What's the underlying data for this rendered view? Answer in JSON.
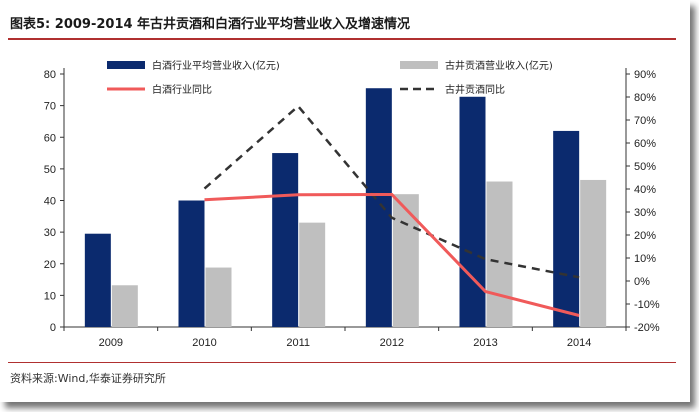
{
  "header": {
    "title": "图表5:   2009-2014 年古井贡酒和白酒行业平均营业收入及增速情况"
  },
  "footer": {
    "source": "资料来源:Wind,华泰证券研究所"
  },
  "colors": {
    "bar_primary": "#0b2a6e",
    "bar_secondary": "#bfbfbf",
    "line_primary": "#f05a5a",
    "line_secondary": "#333333",
    "rule": "#b03030"
  },
  "chart_data": {
    "type": "bar",
    "categories": [
      "2009",
      "2010",
      "2011",
      "2012",
      "2013",
      "2014"
    ],
    "y_left": {
      "lim": [
        0,
        80
      ],
      "ticks": [
        0,
        10,
        20,
        30,
        40,
        50,
        60,
        70,
        80
      ],
      "labels": [
        "0",
        "10",
        "20",
        "30",
        "40",
        "50",
        "60",
        "70",
        "80"
      ]
    },
    "y_right": {
      "lim": [
        -20,
        90
      ],
      "ticks": [
        -20,
        -10,
        0,
        10,
        20,
        30,
        40,
        50,
        60,
        70,
        80,
        90
      ],
      "labels": [
        "-20%",
        "-10%",
        "0%",
        "10%",
        "20%",
        "30%",
        "40%",
        "50%",
        "60%",
        "70%",
        "80%",
        "90%"
      ]
    },
    "series": [
      {
        "name": "白酒行业平均营业收入(亿元)",
        "kind": "bar",
        "axis": "left",
        "values": [
          29.5,
          40,
          55,
          75.5,
          72.8,
          62
        ]
      },
      {
        "name": "古井贡酒营业收入(亿元)",
        "kind": "bar",
        "axis": "left",
        "values": [
          13.2,
          18.8,
          33,
          42,
          46,
          46.5
        ]
      },
      {
        "name": "白酒行业同比",
        "kind": "line",
        "axis": "right",
        "values": [
          null,
          35.3,
          37.5,
          37.6,
          -4.6,
          -15
        ]
      },
      {
        "name": "古井贡酒同比",
        "kind": "dashed-line",
        "axis": "right",
        "values": [
          null,
          40.2,
          76,
          27.5,
          9.5,
          1.6
        ]
      }
    ],
    "legend": "top, two columns",
    "grid": false
  }
}
